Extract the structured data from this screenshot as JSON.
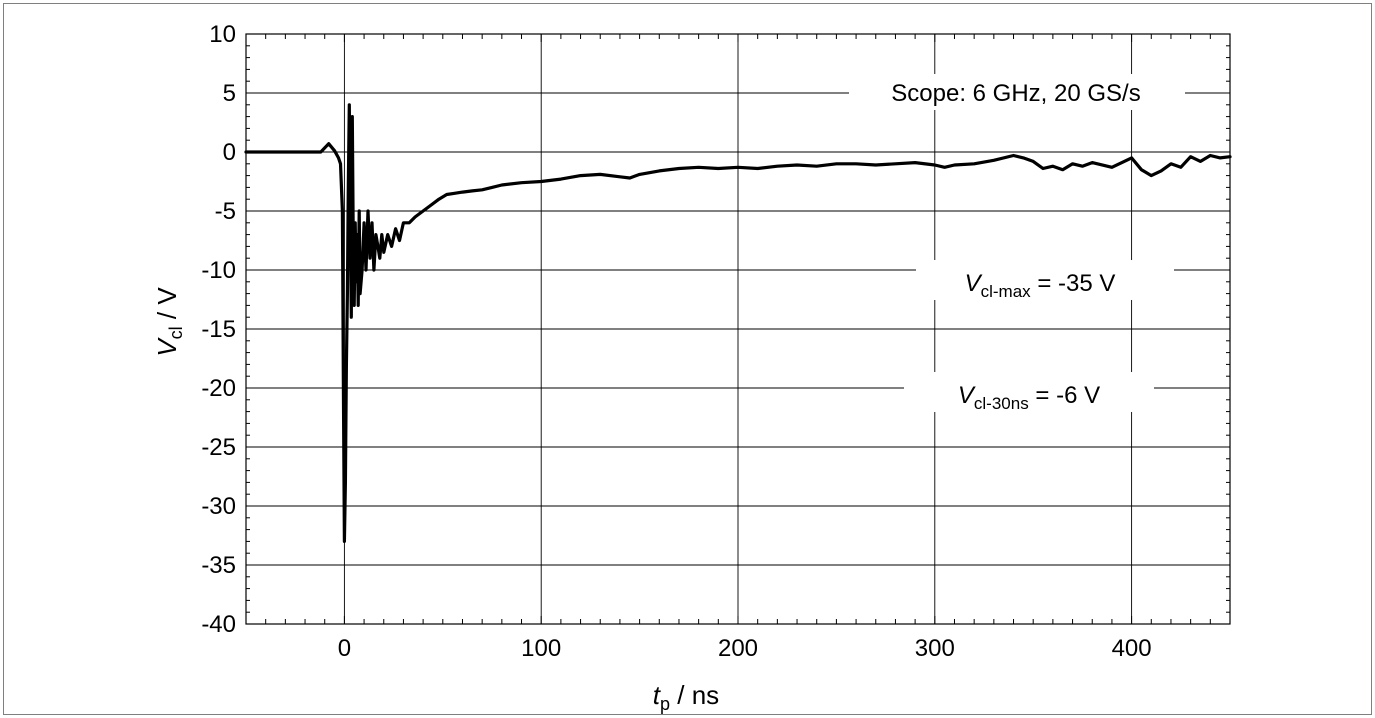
{
  "chart_data": {
    "type": "line",
    "xlabel": {
      "main": "t",
      "sub": "p",
      "suffix": " / ns"
    },
    "ylabel": {
      "main": "V",
      "sub": "cl",
      "suffix": " / V"
    },
    "xlim": [
      -50,
      450
    ],
    "ylim": [
      -40,
      10
    ],
    "xticks": [
      0,
      100,
      200,
      300,
      400
    ],
    "yticks": [
      10,
      5,
      0,
      -5,
      -10,
      -15,
      -20,
      -25,
      -30,
      -35,
      -40
    ],
    "grid": true,
    "annotations": [
      {
        "text": "Scope: 6 GHz, 20 GS/s"
      },
      {
        "main": "V",
        "sub": "cl-max",
        "suffix": " = -35 V"
      },
      {
        "main": "V",
        "sub": "cl-30ns",
        "suffix": " = -6 V"
      }
    ],
    "series": [
      {
        "color": "#000000",
        "x": [
          -50,
          -40,
          -30,
          -20,
          -12,
          -8,
          -5,
          -3,
          -2,
          -1,
          -0.5,
          0,
          0.5,
          1,
          1.5,
          2,
          2.5,
          3,
          3.5,
          4,
          4.5,
          5,
          5.5,
          6,
          6.5,
          7,
          7.5,
          8,
          9,
          10,
          11,
          12,
          13,
          14,
          15,
          16,
          17,
          18,
          19,
          20,
          22,
          24,
          26,
          28,
          30,
          33,
          36,
          40,
          44,
          48,
          52,
          56,
          60,
          65,
          70,
          75,
          80,
          90,
          100,
          110,
          120,
          130,
          140,
          145,
          150,
          160,
          170,
          180,
          190,
          200,
          210,
          220,
          230,
          240,
          250,
          260,
          270,
          280,
          290,
          300,
          305,
          310,
          320,
          330,
          340,
          345,
          350,
          355,
          360,
          365,
          370,
          375,
          380,
          390,
          400,
          405,
          410,
          415,
          420,
          425,
          430,
          435,
          440,
          445,
          450
        ],
        "y": [
          0,
          0,
          0,
          0,
          0,
          0.7,
          0.1,
          -0.5,
          -1,
          -5,
          -20,
          -33,
          -28,
          -18,
          -12,
          -3,
          4,
          -5,
          -14,
          3,
          -8,
          -13,
          -6,
          -11,
          -7,
          -13,
          -5,
          -12,
          -10,
          -6,
          -10,
          -5,
          -9,
          -6,
          -10,
          -7,
          -8,
          -9,
          -7,
          -8.5,
          -7,
          -8,
          -6.5,
          -7.5,
          -6,
          -6,
          -5.5,
          -5,
          -4.5,
          -4,
          -3.6,
          -3.5,
          -3.4,
          -3.3,
          -3.2,
          -3,
          -2.8,
          -2.6,
          -2.5,
          -2.3,
          -2,
          -1.9,
          -2.1,
          -2.2,
          -1.9,
          -1.6,
          -1.4,
          -1.3,
          -1.4,
          -1.3,
          -1.4,
          -1.2,
          -1.1,
          -1.2,
          -1,
          -1,
          -1.1,
          -1,
          -0.9,
          -1.1,
          -1.3,
          -1.1,
          -1,
          -0.7,
          -0.3,
          -0.5,
          -0.8,
          -1.4,
          -1.2,
          -1.5,
          -1,
          -1.2,
          -0.9,
          -1.3,
          -0.5,
          -1.5,
          -2,
          -1.6,
          -1,
          -1.3,
          -0.4,
          -0.8,
          -0.3,
          -0.5,
          -0.4
        ]
      }
    ]
  }
}
